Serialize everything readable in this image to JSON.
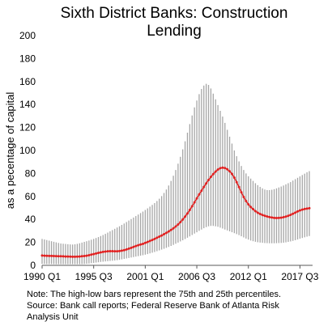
{
  "chart_data": {
    "type": "line",
    "title_lines": [
      "Sixth District Banks: Construction",
      "Lending"
    ],
    "ylabel": "as a pecentage of capital",
    "xlabel": "",
    "ylim": [
      0,
      200
    ],
    "yticks": [
      0,
      20,
      40,
      60,
      80,
      100,
      120,
      140,
      160,
      180,
      200
    ],
    "x_start": "1990 Q1",
    "x_end": "2017 Q3",
    "xticks": [
      {
        "label": "1990 Q1",
        "quarter_index": 0
      },
      {
        "label": "1995 Q3",
        "quarter_index": 22
      },
      {
        "label": "2001 Q1",
        "quarter_index": 44
      },
      {
        "label": "2006 Q3",
        "quarter_index": 66
      },
      {
        "label": "2012 Q1",
        "quarter_index": 88
      },
      {
        "label": "2017 Q3",
        "quarter_index": 110
      }
    ],
    "grid": false,
    "legend": "none",
    "series": [
      {
        "role": "median",
        "color": "#e02020",
        "values": [
          8.5,
          8.4,
          8.3,
          8.2,
          8.2,
          8.1,
          8.0,
          7.9,
          7.9,
          7.8,
          7.7,
          7.7,
          7.6,
          7.5,
          7.5,
          7.6,
          7.7,
          7.9,
          8.1,
          8.4,
          8.8,
          9.3,
          9.8,
          10.3,
          10.8,
          11.3,
          11.7,
          12.0,
          12.2,
          12.3,
          12.3,
          12.2,
          12.2,
          12.4,
          12.8,
          13.2,
          13.8,
          14.5,
          15.2,
          16.0,
          16.8,
          17.5,
          18.1,
          18.7,
          19.5,
          20.3,
          21.2,
          22.1,
          23.0,
          24.0,
          25.0,
          26.0,
          27.1,
          28.3,
          29.5,
          30.8,
          32.2,
          33.8,
          35.6,
          37.6,
          39.9,
          42.4,
          45.2,
          48.2,
          51.4,
          54.8,
          58.3,
          61.7,
          65.0,
          68.2,
          71.3,
          74.3,
          77.0,
          79.4,
          81.6,
          83.4,
          84.6,
          85.0,
          84.7,
          83.6,
          81.9,
          79.6,
          76.3,
          72.4,
          68.1,
          63.6,
          59.5,
          56.0,
          53.1,
          50.8,
          48.9,
          47.2,
          45.8,
          44.7,
          43.8,
          43.1,
          42.5,
          42.0,
          41.6,
          41.3,
          41.2,
          41.3,
          41.5,
          41.9,
          42.4,
          43.1,
          43.9,
          44.9,
          45.9,
          46.9,
          47.8,
          48.5,
          49.0,
          49.4,
          49.7
        ]
      },
      {
        "role": "75th percentile",
        "color": "#a6a6a6",
        "values": [
          23.0,
          22.5,
          22.0,
          21.5,
          21.0,
          20.5,
          20.0,
          19.5,
          19.0,
          18.8,
          18.6,
          18.4,
          18.2,
          18.1,
          18.3,
          18.7,
          19.2,
          19.8,
          20.4,
          21.0,
          21.6,
          22.3,
          23.0,
          23.8,
          24.6,
          25.5,
          26.4,
          27.4,
          28.5,
          29.6,
          30.7,
          31.8,
          32.9,
          34.0,
          35.2,
          36.4,
          37.7,
          39.0,
          40.3,
          41.6,
          42.9,
          44.2,
          45.5,
          46.8,
          48.2,
          49.6,
          51.1,
          52.6,
          54.2,
          56.0,
          58.0,
          60.3,
          63.0,
          66.0,
          69.5,
          73.5,
          78.0,
          83.0,
          88.5,
          94.5,
          101.0,
          108.0,
          115.5,
          123.0,
          130.5,
          137.5,
          143.5,
          149.0,
          153.5,
          156.5,
          158.0,
          157.0,
          154.0,
          149.5,
          144.5,
          139.5,
          134.5,
          129.5,
          124.0,
          118.0,
          112.0,
          106.0,
          100.0,
          95.0,
          90.5,
          86.5,
          83.0,
          80.0,
          77.5,
          75.5,
          73.5,
          71.5,
          69.8,
          68.3,
          67.0,
          66.0,
          65.5,
          65.5,
          65.8,
          66.3,
          67.0,
          67.8,
          68.6,
          69.5,
          70.5,
          71.5,
          72.5,
          73.8,
          75.0,
          76.2,
          77.4,
          78.6,
          79.8,
          81.0,
          82.0
        ]
      },
      {
        "role": "25th percentile",
        "color": "#a6a6a6",
        "values": [
          1.2,
          1.2,
          1.1,
          1.1,
          1.1,
          1.0,
          1.0,
          1.0,
          1.0,
          1.0,
          1.0,
          1.0,
          1.0,
          1.0,
          1.0,
          1.0,
          1.0,
          1.1,
          1.2,
          1.4,
          1.6,
          1.9,
          2.1,
          2.4,
          2.7,
          3.0,
          3.2,
          3.4,
          3.6,
          3.8,
          4.0,
          4.2,
          4.5,
          4.8,
          5.2,
          5.6,
          6.0,
          6.4,
          6.8,
          7.2,
          7.6,
          8.0,
          8.4,
          8.8,
          9.3,
          9.8,
          10.4,
          11.0,
          11.6,
          12.3,
          13.0,
          13.7,
          14.4,
          15.2,
          16.0,
          16.9,
          17.8,
          18.8,
          19.8,
          20.8,
          21.8,
          22.9,
          24.0,
          25.2,
          26.4,
          27.6,
          28.8,
          30.0,
          31.2,
          32.3,
          33.3,
          34.0,
          34.3,
          34.3,
          34.0,
          33.5,
          32.8,
          32.0,
          31.2,
          30.4,
          29.6,
          28.8,
          28.0,
          27.2,
          26.3,
          25.3,
          24.3,
          23.3,
          22.4,
          21.6,
          21.0,
          20.5,
          20.1,
          19.8,
          19.6,
          19.4,
          19.3,
          19.2,
          19.2,
          19.2,
          19.3,
          19.4,
          19.5,
          19.7,
          20.0,
          20.4,
          20.8,
          21.3,
          21.9,
          22.5,
          23.2,
          23.8,
          24.4,
          25.0,
          25.5
        ]
      }
    ]
  },
  "note_lines": [
    "Note: The high-low bars represent the 75th and 25th percentiles.",
    "Source: Bank call reports; Federal Reserve Bank of Atlanta Risk",
    "Analysis Unit"
  ]
}
